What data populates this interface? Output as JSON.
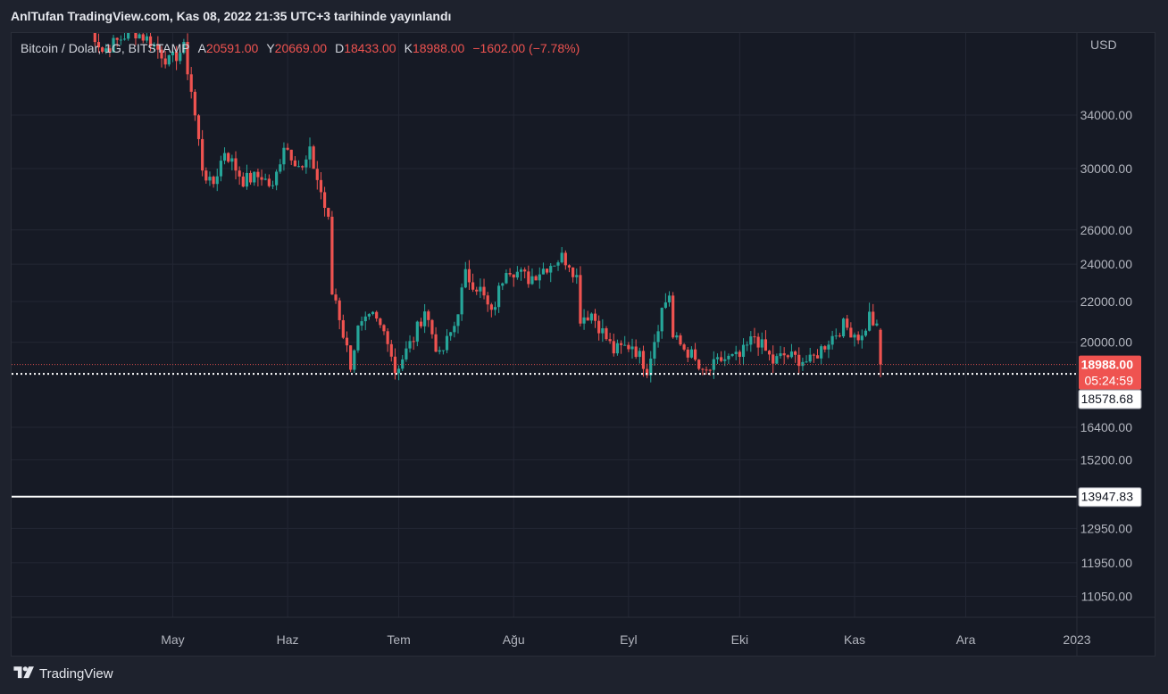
{
  "header": {
    "published": "AnlTufan TradingView.com, Kas 08, 2022 21:35 UTC+3 tarihinde yayınlandı"
  },
  "legend": {
    "symbol": "Bitcoin / Dolar, 1G, BITSTAMP",
    "open_label": "A",
    "open": "20591.00",
    "high_label": "Y",
    "high": "20669.00",
    "low_label": "D",
    "low": "18433.00",
    "close_label": "K",
    "close": "18988.00",
    "change": "−1602.00 (−7.78%)"
  },
  "footer": {
    "brand": "TradingView"
  },
  "colors": {
    "up": "#26a69a",
    "down": "#ef5350",
    "background": "#161a25",
    "grid": "#232734",
    "axis_text": "#b2b5be"
  },
  "chart_data": {
    "type": "candlestick",
    "title": "Bitcoin / Dolar, 1G, BITSTAMP",
    "y_unit": "USD",
    "y_scale": "log",
    "ylim": [
      10500,
      40500
    ],
    "x_range": [
      "2022-04-08",
      "2022-12-31"
    ],
    "y_ticks": [
      34000,
      30000,
      26000,
      24000,
      22000,
      20000,
      16400,
      15200,
      12950,
      11950,
      11050
    ],
    "x_ticks": [
      {
        "date": "2022-05-01",
        "label": "May"
      },
      {
        "date": "2022-06-01",
        "label": "Haz"
      },
      {
        "date": "2022-07-01",
        "label": "Tem"
      },
      {
        "date": "2022-08-01",
        "label": "Ağu"
      },
      {
        "date": "2022-09-01",
        "label": "Eyl"
      },
      {
        "date": "2022-10-01",
        "label": "Eki"
      },
      {
        "date": "2022-11-01",
        "label": "Kas"
      },
      {
        "date": "2022-12-01",
        "label": "Ara"
      },
      {
        "date": "2022-12-31",
        "label": "2023"
      }
    ],
    "price_labels": [
      {
        "label": "last_price",
        "value": "18988.00",
        "sub": "05:24:59",
        "style": "current"
      },
      {
        "label": "support_line",
        "value": "18578.68",
        "style": "line"
      },
      {
        "label": "support_line_2",
        "value": "13947.83",
        "style": "line"
      }
    ],
    "horizontal_lines": [
      {
        "label": "last_price",
        "price": 18988,
        "style": "dotted-red"
      },
      {
        "label": "support_line",
        "price": 18578.68,
        "style": "dotted-white"
      },
      {
        "label": "support_line_2",
        "price": 13947.83,
        "style": "solid-white"
      }
    ],
    "ohlc_last": {
      "open": 20591,
      "high": 20669,
      "low": 18433,
      "close": 18988
    },
    "anchor_closes": [
      [
        "2022-04-08",
        42300
      ],
      [
        "2022-04-12",
        39500
      ],
      [
        "2022-04-16",
        40400
      ],
      [
        "2022-04-20",
        41500
      ],
      [
        "2022-04-25",
        40400
      ],
      [
        "2022-04-30",
        38500
      ],
      [
        "2022-05-04",
        39700
      ],
      [
        "2022-05-06",
        36000
      ],
      [
        "2022-05-09",
        30100
      ],
      [
        "2022-05-11",
        28950
      ],
      [
        "2022-05-12",
        29000
      ],
      [
        "2022-05-15",
        31300
      ],
      [
        "2022-05-20",
        29200
      ],
      [
        "2022-05-25",
        29500
      ],
      [
        "2022-05-28",
        28600
      ],
      [
        "2022-05-31",
        31800
      ],
      [
        "2022-06-05",
        29900
      ],
      [
        "2022-06-07",
        31100
      ],
      [
        "2022-06-10",
        28400
      ],
      [
        "2022-06-12",
        26500
      ],
      [
        "2022-06-13",
        22400
      ],
      [
        "2022-06-14",
        22100
      ],
      [
        "2022-06-16",
        20400
      ],
      [
        "2022-06-18",
        19000
      ],
      [
        "2022-06-20",
        20600
      ],
      [
        "2022-06-24",
        21200
      ],
      [
        "2022-06-28",
        20250
      ],
      [
        "2022-06-30",
        18700
      ],
      [
        "2022-07-05",
        20200
      ],
      [
        "2022-07-08",
        21600
      ],
      [
        "2022-07-12",
        19300
      ],
      [
        "2022-07-16",
        20800
      ],
      [
        "2022-07-19",
        23400
      ],
      [
        "2022-07-23",
        22600
      ],
      [
        "2022-07-26",
        21300
      ],
      [
        "2022-07-30",
        23900
      ],
      [
        "2022-08-05",
        23200
      ],
      [
        "2022-08-10",
        23900
      ],
      [
        "2022-08-14",
        24400
      ],
      [
        "2022-08-16",
        24100
      ],
      [
        "2022-08-18",
        23300
      ],
      [
        "2022-08-19",
        21200
      ],
      [
        "2022-08-22",
        21400
      ],
      [
        "2022-08-28",
        19600
      ],
      [
        "2022-09-02",
        19900
      ],
      [
        "2022-09-06",
        18800
      ],
      [
        "2022-09-10",
        21600
      ],
      [
        "2022-09-12",
        22400
      ],
      [
        "2022-09-13",
        20200
      ],
      [
        "2022-09-18",
        19400
      ],
      [
        "2022-09-21",
        18500
      ],
      [
        "2022-09-26",
        19200
      ],
      [
        "2022-10-01",
        19300
      ],
      [
        "2022-10-05",
        20300
      ],
      [
        "2022-10-10",
        19100
      ],
      [
        "2022-10-13",
        19400
      ],
      [
        "2022-10-20",
        19100
      ],
      [
        "2022-10-25",
        20100
      ],
      [
        "2022-10-29",
        20800
      ],
      [
        "2022-11-03",
        20200
      ],
      [
        "2022-11-05",
        21300
      ],
      [
        "2022-11-07",
        20600
      ],
      [
        "2022-11-08",
        18988
      ]
    ]
  }
}
